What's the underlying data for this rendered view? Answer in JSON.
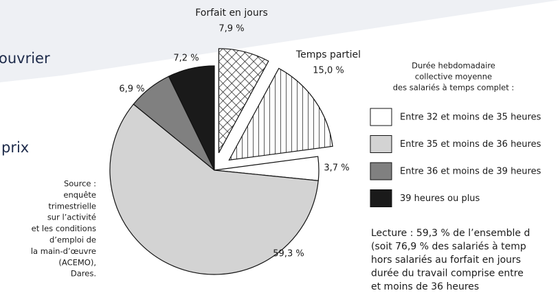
{
  "fragments": {
    "heading_1": "ouvrier",
    "heading_2": "prix"
  },
  "source": [
    "Source :",
    "enquête",
    "trimestrielle",
    "sur l’activité",
    "et les conditions",
    "d’emploi de",
    "la main-d’œuvre",
    "(ACEMO),",
    "Dares."
  ],
  "lecture": [
    "Lecture : 59,3 % de l’ensemble d",
    "(soit 76,9 % des salariés à temp",
    "hors salariés au forfait en jours",
    "durée du travail comprise entre",
    "et moins de 36 heures"
  ],
  "chart_data": {
    "type": "pie",
    "legend_title": [
      "Durée hebdomadaire",
      "collective moyenne",
      "des salariés à temps complet :"
    ],
    "categories": [
      "Forfait en jours",
      "Temps partiel",
      "Entre 32 et moins de 35 heures",
      "Entre 35 et moins de 36 heures",
      "Entre 36 et moins de 39 heures",
      "39 heures ou plus"
    ],
    "values": [
      7.9,
      15.0,
      3.7,
      59.3,
      6.9,
      7.2
    ],
    "value_labels": [
      "7,9 %",
      "15,0 %",
      "3,7 %",
      "59,3 %",
      "6,9 %",
      "7,2 %"
    ],
    "colors": [
      "#ffffff",
      "#ffffff",
      "#ffffff",
      "#d3d3d3",
      "#808080",
      "#1a1a1a"
    ],
    "hatch": [
      "cross",
      "vertical",
      "none",
      "none",
      "none",
      "none"
    ],
    "exploded": [
      true,
      true,
      false,
      false,
      false,
      false
    ]
  }
}
